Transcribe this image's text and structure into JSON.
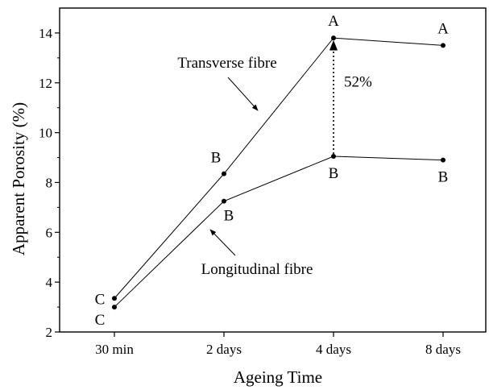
{
  "chart_data": {
    "type": "line",
    "categories": [
      "30 min",
      "2 days",
      "4 days",
      "8 days"
    ],
    "xlabel": "Ageing Time",
    "ylabel": "Apparent Porosity (%)",
    "ylim": [
      2,
      15
    ],
    "yticks": [
      2,
      4,
      6,
      8,
      10,
      12,
      14
    ],
    "grid": false,
    "legend": "none",
    "series": [
      {
        "name": "Transverse fibre",
        "values": [
          3.35,
          8.35,
          13.8,
          13.5
        ],
        "grades": [
          "C",
          "B",
          "A",
          "A"
        ]
      },
      {
        "name": "Longitudinal fibre",
        "values": [
          3.0,
          7.25,
          9.05,
          8.9
        ],
        "grades": [
          "C",
          "B",
          "B",
          "B"
        ]
      }
    ],
    "annotations": [
      {
        "text": "52%",
        "category": "4 days",
        "from": 9.05,
        "to": 13.8
      }
    ],
    "color": "#000000"
  }
}
